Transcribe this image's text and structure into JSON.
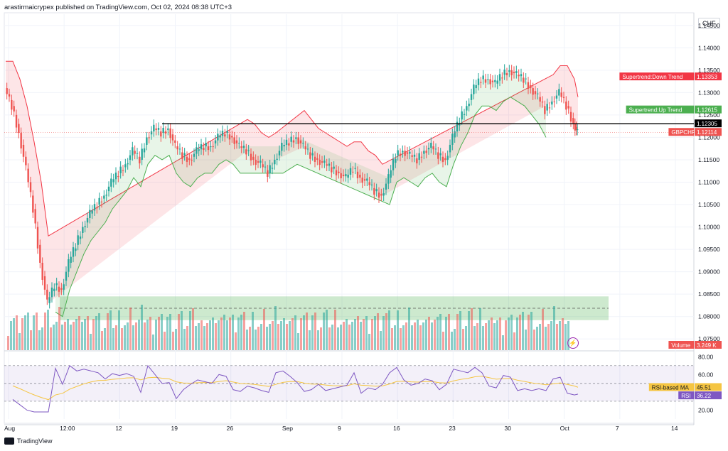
{
  "header": {
    "publisher_line": "arastirmaicrypex published on TradingView.com, Oct 02, 2024 08:38 UTC+3"
  },
  "currency_label": "CHF",
  "footer": {
    "brand": "TradingView"
  },
  "colors": {
    "up": "#26a69a",
    "down": "#ef5350",
    "supertrend_up": "#4caf50",
    "supertrend_down": "#f23645",
    "rsi": "#7e57c2",
    "rsi_ma": "#f5c542",
    "zone": "#4caf50",
    "level": "#000000"
  },
  "chart_data": [
    {
      "type": "line",
      "title": "",
      "symbol": "GBPCHF",
      "ylim": [
        1.0725,
        1.1475
      ],
      "y_ticks": [
        "1.14500",
        "1.14000",
        "1.13500",
        "1.13000",
        "1.12500",
        "1.12000",
        "1.11500",
        "1.11000",
        "1.10500",
        "1.10000",
        "1.09500",
        "1.09000",
        "1.08500",
        "1.08000",
        "1.07500"
      ],
      "x_ticks": [
        "Aug",
        "12:00",
        "12",
        "19",
        "26",
        "Sep",
        "9",
        "16",
        "23",
        "30",
        "Oct",
        "7",
        "14"
      ],
      "series": [
        {
          "name": "GBPCHF",
          "x": [
            0,
            10,
            20,
            30,
            40,
            50,
            60,
            70,
            80,
            90,
            100,
            110,
            120,
            130,
            140,
            150,
            160,
            170,
            180,
            190,
            200,
            210,
            220,
            230,
            240,
            250,
            260,
            270,
            280,
            290,
            300,
            310,
            320,
            330,
            340,
            350,
            360,
            370,
            380,
            390,
            400,
            410,
            420,
            430,
            440,
            450,
            460,
            470,
            480,
            490,
            500,
            510,
            520,
            530,
            540,
            550,
            560,
            570,
            580,
            590,
            600,
            610,
            620,
            630,
            640,
            650,
            660,
            670,
            680,
            690,
            700,
            710,
            720,
            730,
            740,
            750,
            760,
            770,
            780,
            790,
            800,
            805
          ],
          "values": [
            1.131,
            1.127,
            1.121,
            1.113,
            1.104,
            1.092,
            1.083,
            1.087,
            1.086,
            1.092,
            1.096,
            1.1,
            1.103,
            1.105,
            1.107,
            1.11,
            1.112,
            1.114,
            1.117,
            1.115,
            1.12,
            1.122,
            1.121,
            1.122,
            1.118,
            1.116,
            1.115,
            1.117,
            1.118,
            1.118,
            1.12,
            1.121,
            1.12,
            1.118,
            1.117,
            1.115,
            1.114,
            1.112,
            1.115,
            1.118,
            1.119,
            1.12,
            1.118,
            1.116,
            1.115,
            1.114,
            1.113,
            1.112,
            1.111,
            1.113,
            1.111,
            1.11,
            1.108,
            1.107,
            1.111,
            1.116,
            1.117,
            1.116,
            1.115,
            1.117,
            1.118,
            1.116,
            1.115,
            1.12,
            1.124,
            1.127,
            1.131,
            1.133,
            1.133,
            1.132,
            1.134,
            1.135,
            1.134,
            1.133,
            1.131,
            1.129,
            1.126,
            1.128,
            1.13,
            1.127,
            1.123,
            1.121
          ]
        },
        {
          "name": "Supertrend:Down Trend",
          "last_value": 1.13353
        },
        {
          "name": "Supertrend:Up Trend",
          "last_value": 1.12615
        }
      ],
      "horizontal_level": 1.12305,
      "demand_zone": [
        1.0792,
        1.0845
      ],
      "labels": [
        {
          "text": "Supertrend:Down Trend",
          "value": "1.13353"
        },
        {
          "text": "Supertrend:Up Trend",
          "value": "1.12615"
        },
        {
          "text": "",
          "value": "1.12305"
        },
        {
          "text": "GBPCHF",
          "value": "1.12114"
        },
        {
          "text": "Volume",
          "value": "3.249 K"
        }
      ],
      "grid": true
    },
    {
      "type": "line",
      "title": "",
      "ylim": [
        10,
        85
      ],
      "y_ticks": [
        "80.00",
        "60.00",
        "20.00"
      ],
      "band": [
        30,
        70
      ],
      "series": [
        {
          "name": "RSI",
          "last_value": 36.22
        },
        {
          "name": "RSI-based MA",
          "last_value": 45.51
        }
      ],
      "labels": [
        {
          "text": "RSI-based MA",
          "value": "45.51"
        },
        {
          "text": "RSI",
          "value": "36.22"
        }
      ]
    }
  ]
}
